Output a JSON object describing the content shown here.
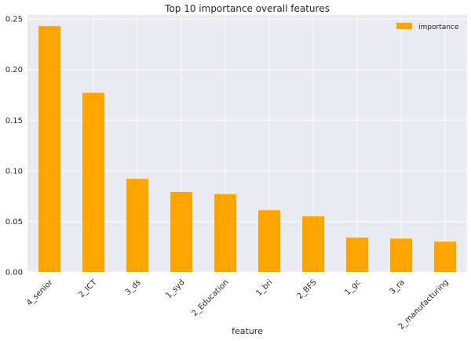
{
  "chart_data": {
    "type": "bar",
    "title": "Top 10 importance overall features",
    "xlabel": "feature",
    "ylabel": "",
    "categories": [
      "4_senior",
      "2_ICT",
      "3_ds",
      "1_syd",
      "2_Education",
      "1_bri",
      "2_BFS",
      "1_gc",
      "3_ra",
      "2_manufacturing"
    ],
    "series": [
      {
        "name": "importance",
        "values": [
          0.243,
          0.177,
          0.092,
          0.079,
          0.077,
          0.061,
          0.055,
          0.034,
          0.033,
          0.03
        ]
      }
    ],
    "ylim": [
      0,
      0.254
    ],
    "yticks": [
      0.0,
      0.05,
      0.1,
      0.15,
      0.2,
      0.25
    ],
    "ytick_labels": [
      "0.00",
      "0.05",
      "0.10",
      "0.15",
      "0.20",
      "0.25"
    ],
    "grid": true,
    "legend_position": "top-right",
    "colors": {
      "bar": "#FFA500",
      "plot_bg": "#EAEAF2",
      "grid": "#FFFFFF",
      "text": "#262626"
    }
  }
}
